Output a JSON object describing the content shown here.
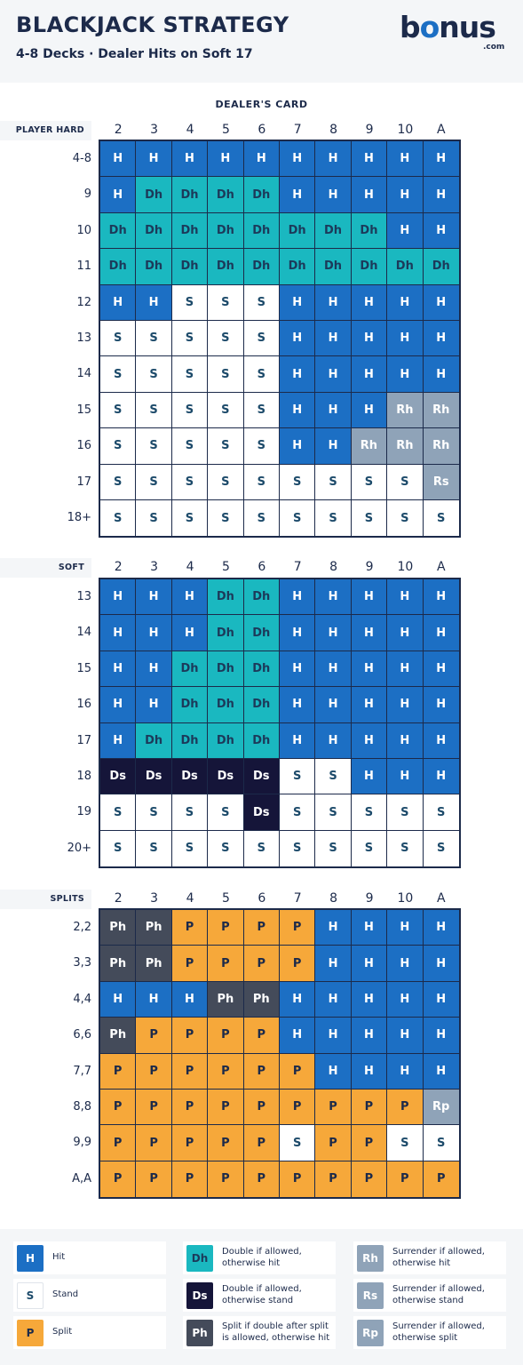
{
  "header": {
    "title": "BLACKJACK STRATEGY",
    "subtitle": "4-8 Decks · Dealer Hits on Soft 17",
    "logo_main": "bonus",
    "logo_suffix": ".com"
  },
  "dealer_label": "DEALER'S CARD",
  "dealer_cards": [
    "2",
    "3",
    "4",
    "5",
    "6",
    "7",
    "8",
    "9",
    "10",
    "A"
  ],
  "colors": {
    "H": "#1c6fc4",
    "S": "#ffffff",
    "Dh": "#1ab8c0",
    "Ds": "#151539",
    "R": "#8fa3b8",
    "P": "#f6a83a",
    "Ph": "#444b5a"
  },
  "sections": [
    {
      "label": "PLAYER HARD",
      "rows": [
        {
          "label": "4-8",
          "cells": [
            "H",
            "H",
            "H",
            "H",
            "H",
            "H",
            "H",
            "H",
            "H",
            "H"
          ]
        },
        {
          "label": "9",
          "cells": [
            "H",
            "Dh",
            "Dh",
            "Dh",
            "Dh",
            "H",
            "H",
            "H",
            "H",
            "H"
          ]
        },
        {
          "label": "10",
          "cells": [
            "Dh",
            "Dh",
            "Dh",
            "Dh",
            "Dh",
            "Dh",
            "Dh",
            "Dh",
            "H",
            "H"
          ]
        },
        {
          "label": "11",
          "cells": [
            "Dh",
            "Dh",
            "Dh",
            "Dh",
            "Dh",
            "Dh",
            "Dh",
            "Dh",
            "Dh",
            "Dh"
          ]
        },
        {
          "label": "12",
          "cells": [
            "H",
            "H",
            "S",
            "S",
            "S",
            "H",
            "H",
            "H",
            "H",
            "H"
          ]
        },
        {
          "label": "13",
          "cells": [
            "S",
            "S",
            "S",
            "S",
            "S",
            "H",
            "H",
            "H",
            "H",
            "H"
          ]
        },
        {
          "label": "14",
          "cells": [
            "S",
            "S",
            "S",
            "S",
            "S",
            "H",
            "H",
            "H",
            "H",
            "H"
          ]
        },
        {
          "label": "15",
          "cells": [
            "S",
            "S",
            "S",
            "S",
            "S",
            "H",
            "H",
            "H",
            "Rh",
            "Rh"
          ]
        },
        {
          "label": "16",
          "cells": [
            "S",
            "S",
            "S",
            "S",
            "S",
            "H",
            "H",
            "Rh",
            "Rh",
            "Rh"
          ]
        },
        {
          "label": "17",
          "cells": [
            "S",
            "S",
            "S",
            "S",
            "S",
            "S",
            "S",
            "S",
            "S",
            "Rs"
          ]
        },
        {
          "label": "18+",
          "cells": [
            "S",
            "S",
            "S",
            "S",
            "S",
            "S",
            "S",
            "S",
            "S",
            "S"
          ]
        }
      ]
    },
    {
      "label": "SOFT",
      "rows": [
        {
          "label": "13",
          "cells": [
            "H",
            "H",
            "H",
            "Dh",
            "Dh",
            "H",
            "H",
            "H",
            "H",
            "H"
          ]
        },
        {
          "label": "14",
          "cells": [
            "H",
            "H",
            "H",
            "Dh",
            "Dh",
            "H",
            "H",
            "H",
            "H",
            "H"
          ]
        },
        {
          "label": "15",
          "cells": [
            "H",
            "H",
            "Dh",
            "Dh",
            "Dh",
            "H",
            "H",
            "H",
            "H",
            "H"
          ]
        },
        {
          "label": "16",
          "cells": [
            "H",
            "H",
            "Dh",
            "Dh",
            "Dh",
            "H",
            "H",
            "H",
            "H",
            "H"
          ]
        },
        {
          "label": "17",
          "cells": [
            "H",
            "Dh",
            "Dh",
            "Dh",
            "Dh",
            "H",
            "H",
            "H",
            "H",
            "H"
          ]
        },
        {
          "label": "18",
          "cells": [
            "Ds",
            "Ds",
            "Ds",
            "Ds",
            "Ds",
            "S",
            "S",
            "H",
            "H",
            "H"
          ]
        },
        {
          "label": "19",
          "cells": [
            "S",
            "S",
            "S",
            "S",
            "Ds",
            "S",
            "S",
            "S",
            "S",
            "S"
          ]
        },
        {
          "label": "20+",
          "cells": [
            "S",
            "S",
            "S",
            "S",
            "S",
            "S",
            "S",
            "S",
            "S",
            "S"
          ]
        }
      ]
    },
    {
      "label": "SPLITS",
      "rows": [
        {
          "label": "2,2",
          "cells": [
            "Ph",
            "Ph",
            "P",
            "P",
            "P",
            "P",
            "H",
            "H",
            "H",
            "H"
          ]
        },
        {
          "label": "3,3",
          "cells": [
            "Ph",
            "Ph",
            "P",
            "P",
            "P",
            "P",
            "H",
            "H",
            "H",
            "H"
          ]
        },
        {
          "label": "4,4",
          "cells": [
            "H",
            "H",
            "H",
            "Ph",
            "Ph",
            "H",
            "H",
            "H",
            "H",
            "H"
          ]
        },
        {
          "label": "6,6",
          "cells": [
            "Ph",
            "P",
            "P",
            "P",
            "P",
            "H",
            "H",
            "H",
            "H",
            "H"
          ]
        },
        {
          "label": "7,7",
          "cells": [
            "P",
            "P",
            "P",
            "P",
            "P",
            "P",
            "H",
            "H",
            "H",
            "H"
          ]
        },
        {
          "label": "8,8",
          "cells": [
            "P",
            "P",
            "P",
            "P",
            "P",
            "P",
            "P",
            "P",
            "P",
            "Rp"
          ]
        },
        {
          "label": "9,9",
          "cells": [
            "P",
            "P",
            "P",
            "P",
            "P",
            "S",
            "P",
            "P",
            "S",
            "S"
          ]
        },
        {
          "label": "A,A",
          "cells": [
            "P",
            "P",
            "P",
            "P",
            "P",
            "P",
            "P",
            "P",
            "P",
            "P"
          ]
        }
      ]
    }
  ],
  "legend": [
    {
      "code": "H",
      "text": "Hit"
    },
    {
      "code": "Dh",
      "text": "Double if allowed, otherwise hit"
    },
    {
      "code": "Rh",
      "text": "Surrender if allowed, otherwise hit"
    },
    {
      "code": "S",
      "text": "Stand"
    },
    {
      "code": "Ds",
      "text": "Double if allowed, otherwise stand"
    },
    {
      "code": "Rs",
      "text": "Surrender if allowed, otherwise stand"
    },
    {
      "code": "P",
      "text": "Split"
    },
    {
      "code": "Ph",
      "text": "Split if double after split is allowed, otherwise hit"
    },
    {
      "code": "Rp",
      "text": "Surrender if allowed, otherwise split"
    }
  ]
}
